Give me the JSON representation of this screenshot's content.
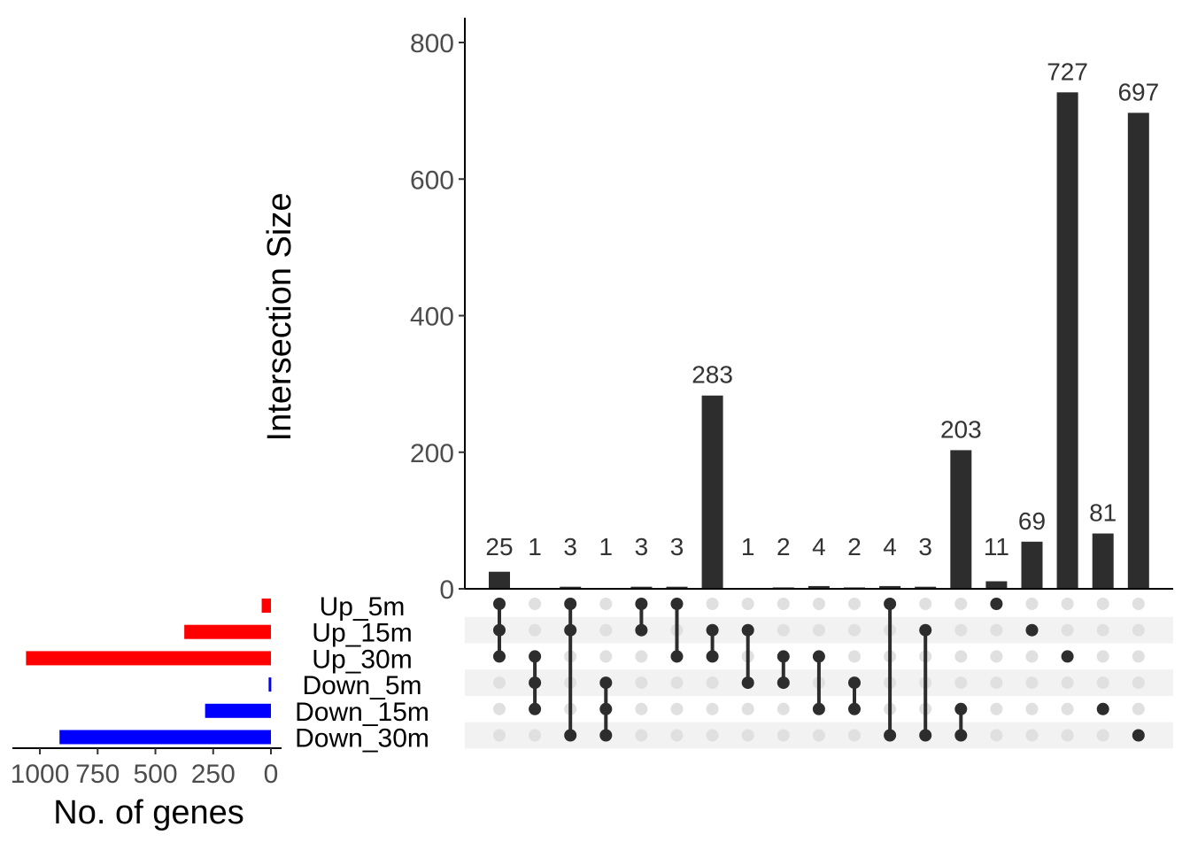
{
  "chart_data": {
    "type": "upset",
    "ylabel": "Intersection Size",
    "ylim": [
      0,
      840
    ],
    "yticks": [
      0,
      200,
      400,
      600,
      800
    ],
    "sets": [
      {
        "name": "Up_5m",
        "size": 40,
        "color": "#ff0000"
      },
      {
        "name": "Up_15m",
        "size": 375,
        "color": "#ff0000"
      },
      {
        "name": "Up_30m",
        "size": 1060,
        "color": "#ff0000"
      },
      {
        "name": "Down_5m",
        "size": 10,
        "color": "#0000ff"
      },
      {
        "name": "Down_15m",
        "size": 285,
        "color": "#0000ff"
      },
      {
        "name": "Down_30m",
        "size": 915,
        "color": "#0000ff"
      }
    ],
    "set_size_axis": {
      "xlabel": "No. of genes",
      "xlim": [
        0,
        1100
      ],
      "ticks": [
        1000,
        750,
        500,
        250,
        0
      ]
    },
    "intersections": [
      {
        "value": 25,
        "sets": [
          "Up_5m",
          "Up_15m",
          "Up_30m"
        ]
      },
      {
        "value": 1,
        "sets": [
          "Up_30m",
          "Down_5m",
          "Down_15m"
        ]
      },
      {
        "value": 3,
        "sets": [
          "Up_5m",
          "Up_15m",
          "Down_30m"
        ]
      },
      {
        "value": 1,
        "sets": [
          "Down_5m",
          "Down_15m",
          "Down_30m"
        ]
      },
      {
        "value": 3,
        "sets": [
          "Up_5m",
          "Up_15m"
        ]
      },
      {
        "value": 3,
        "sets": [
          "Up_5m",
          "Up_30m"
        ]
      },
      {
        "value": 283,
        "sets": [
          "Up_15m",
          "Up_30m"
        ]
      },
      {
        "value": 1,
        "sets": [
          "Up_15m",
          "Down_5m"
        ]
      },
      {
        "value": 2,
        "sets": [
          "Up_30m",
          "Down_5m"
        ]
      },
      {
        "value": 4,
        "sets": [
          "Up_30m",
          "Down_15m"
        ]
      },
      {
        "value": 2,
        "sets": [
          "Down_5m",
          "Down_15m"
        ]
      },
      {
        "value": 4,
        "sets": [
          "Up_5m",
          "Down_30m"
        ]
      },
      {
        "value": 3,
        "sets": [
          "Up_15m",
          "Down_30m"
        ]
      },
      {
        "value": 203,
        "sets": [
          "Down_15m",
          "Down_30m"
        ]
      },
      {
        "value": 11,
        "sets": [
          "Up_5m"
        ]
      },
      {
        "value": 69,
        "sets": [
          "Up_15m"
        ]
      },
      {
        "value": 727,
        "sets": [
          "Up_30m"
        ]
      },
      {
        "value": 81,
        "sets": [
          "Down_15m"
        ]
      },
      {
        "value": 697,
        "sets": [
          "Down_30m"
        ]
      }
    ],
    "bar_color": "#2d2d2d",
    "dot_active_color": "#2d2d2d",
    "dot_inactive_color": "#e0e0e0",
    "stripe_color": "#f2f2f2"
  }
}
